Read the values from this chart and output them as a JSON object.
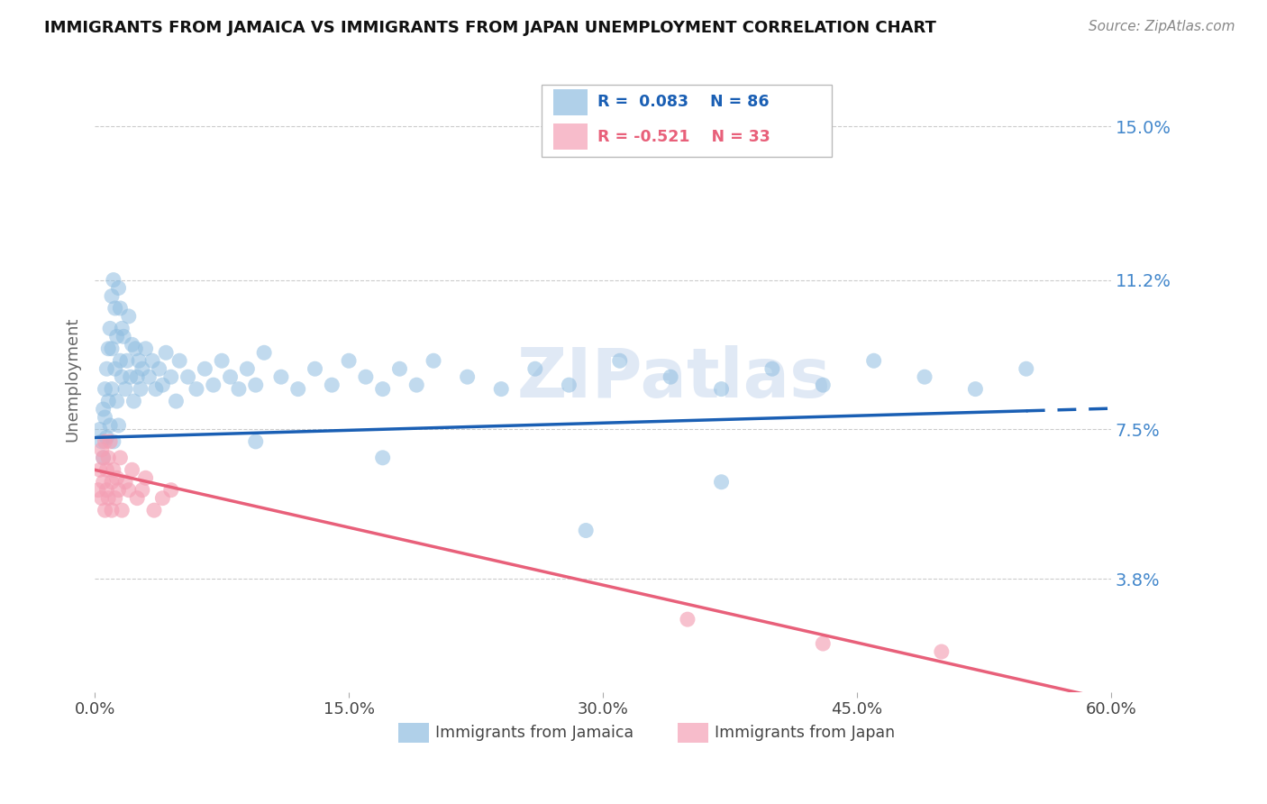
{
  "title": "IMMIGRANTS FROM JAMAICA VS IMMIGRANTS FROM JAPAN UNEMPLOYMENT CORRELATION CHART",
  "source": "Source: ZipAtlas.com",
  "ylabel": "Unemployment",
  "xlim": [
    0.0,
    0.6
  ],
  "ylim": [
    0.01,
    0.165
  ],
  "yticks": [
    0.038,
    0.075,
    0.112,
    0.15
  ],
  "ytick_labels": [
    "3.8%",
    "7.5%",
    "11.2%",
    "15.0%"
  ],
  "xticks": [
    0.0,
    0.15,
    0.3,
    0.45,
    0.6
  ],
  "xtick_labels": [
    "0.0%",
    "15.0%",
    "30.0%",
    "45.0%",
    "60.0%"
  ],
  "jamaica_color": "#8fbde0",
  "japan_color": "#f4a0b5",
  "jamaica_line_color": "#1a5fb4",
  "japan_line_color": "#e8607a",
  "jamaica_R": 0.083,
  "jamaica_N": 86,
  "japan_R": -0.521,
  "japan_N": 33,
  "watermark": "ZIPatlas",
  "background_color": "#ffffff",
  "grid_color": "#cccccc",
  "jamaica_x": [
    0.003,
    0.004,
    0.005,
    0.005,
    0.006,
    0.006,
    0.007,
    0.007,
    0.008,
    0.008,
    0.009,
    0.009,
    0.01,
    0.01,
    0.01,
    0.011,
    0.011,
    0.012,
    0.012,
    0.013,
    0.013,
    0.014,
    0.014,
    0.015,
    0.015,
    0.016,
    0.016,
    0.017,
    0.018,
    0.019,
    0.02,
    0.021,
    0.022,
    0.023,
    0.024,
    0.025,
    0.026,
    0.027,
    0.028,
    0.03,
    0.032,
    0.034,
    0.036,
    0.038,
    0.04,
    0.042,
    0.045,
    0.048,
    0.05,
    0.055,
    0.06,
    0.065,
    0.07,
    0.075,
    0.08,
    0.085,
    0.09,
    0.095,
    0.1,
    0.11,
    0.12,
    0.13,
    0.14,
    0.15,
    0.16,
    0.17,
    0.18,
    0.19,
    0.2,
    0.22,
    0.24,
    0.26,
    0.28,
    0.31,
    0.34,
    0.37,
    0.4,
    0.43,
    0.46,
    0.49,
    0.52,
    0.55,
    0.37,
    0.29,
    0.17,
    0.095
  ],
  "jamaica_y": [
    0.075,
    0.072,
    0.08,
    0.068,
    0.085,
    0.078,
    0.09,
    0.073,
    0.095,
    0.082,
    0.1,
    0.076,
    0.108,
    0.095,
    0.085,
    0.112,
    0.072,
    0.105,
    0.09,
    0.098,
    0.082,
    0.11,
    0.076,
    0.105,
    0.092,
    0.1,
    0.088,
    0.098,
    0.085,
    0.092,
    0.103,
    0.088,
    0.096,
    0.082,
    0.095,
    0.088,
    0.092,
    0.085,
    0.09,
    0.095,
    0.088,
    0.092,
    0.085,
    0.09,
    0.086,
    0.094,
    0.088,
    0.082,
    0.092,
    0.088,
    0.085,
    0.09,
    0.086,
    0.092,
    0.088,
    0.085,
    0.09,
    0.086,
    0.094,
    0.088,
    0.085,
    0.09,
    0.086,
    0.092,
    0.088,
    0.085,
    0.09,
    0.086,
    0.092,
    0.088,
    0.085,
    0.09,
    0.086,
    0.092,
    0.088,
    0.085,
    0.09,
    0.086,
    0.092,
    0.088,
    0.085,
    0.09,
    0.062,
    0.05,
    0.068,
    0.072
  ],
  "japan_x": [
    0.002,
    0.003,
    0.004,
    0.004,
    0.005,
    0.005,
    0.006,
    0.006,
    0.007,
    0.007,
    0.008,
    0.008,
    0.009,
    0.01,
    0.01,
    0.011,
    0.012,
    0.013,
    0.014,
    0.015,
    0.016,
    0.018,
    0.02,
    0.022,
    0.025,
    0.028,
    0.03,
    0.035,
    0.04,
    0.045,
    0.35,
    0.43,
    0.5
  ],
  "japan_y": [
    0.06,
    0.065,
    0.058,
    0.07,
    0.062,
    0.068,
    0.055,
    0.072,
    0.06,
    0.065,
    0.058,
    0.068,
    0.072,
    0.062,
    0.055,
    0.065,
    0.058,
    0.063,
    0.06,
    0.068,
    0.055,
    0.062,
    0.06,
    0.065,
    0.058,
    0.06,
    0.063,
    0.055,
    0.058,
    0.06,
    0.028,
    0.022,
    0.02
  ],
  "jamaica_line_start_x": 0.0,
  "jamaica_line_end_solid_x": 0.55,
  "jamaica_line_end_dash_x": 0.6,
  "jamaica_line_y0": 0.073,
  "jamaica_line_slope": 0.012,
  "japan_line_y0": 0.065,
  "japan_line_slope": -0.095
}
